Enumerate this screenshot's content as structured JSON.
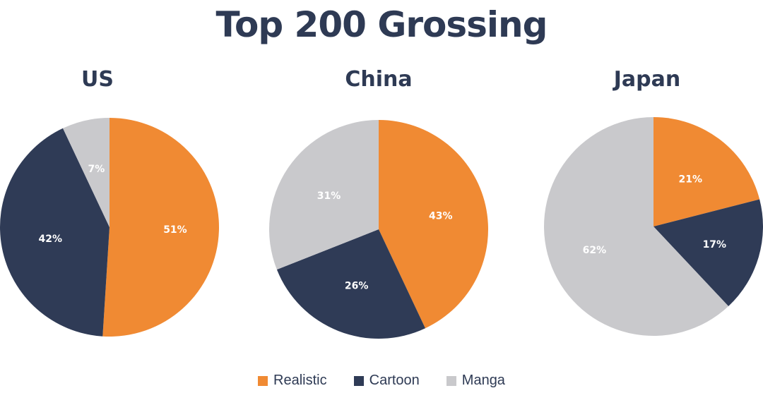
{
  "title": "Top 200 Grossing",
  "colors": {
    "realistic": "#f08a33",
    "cartoon": "#2f3b56",
    "manga": "#c9c9cc",
    "text": "#2e3a54"
  },
  "legend": [
    {
      "label": "Realistic",
      "color": "#f08a33"
    },
    {
      "label": "Cartoon",
      "color": "#2f3b56"
    },
    {
      "label": "Manga",
      "color": "#c9c9cc"
    }
  ],
  "chart_data": [
    {
      "type": "pie",
      "title": "US",
      "categories": [
        "Realistic",
        "Cartoon",
        "Manga"
      ],
      "values": [
        51,
        42,
        7
      ],
      "labels": [
        "51%",
        "42%",
        "7%"
      ],
      "legend_position": "bottom"
    },
    {
      "type": "pie",
      "title": "China",
      "categories": [
        "Realistic",
        "Cartoon",
        "Manga"
      ],
      "values": [
        43,
        26,
        31
      ],
      "labels": [
        "43%",
        "26%",
        "31%"
      ],
      "legend_position": "bottom"
    },
    {
      "type": "pie",
      "title": "Japan",
      "categories": [
        "Realistic",
        "Cartoon",
        "Manga"
      ],
      "values": [
        21,
        17,
        62
      ],
      "labels": [
        "21%",
        "17%",
        "62%"
      ],
      "legend_position": "bottom"
    }
  ]
}
